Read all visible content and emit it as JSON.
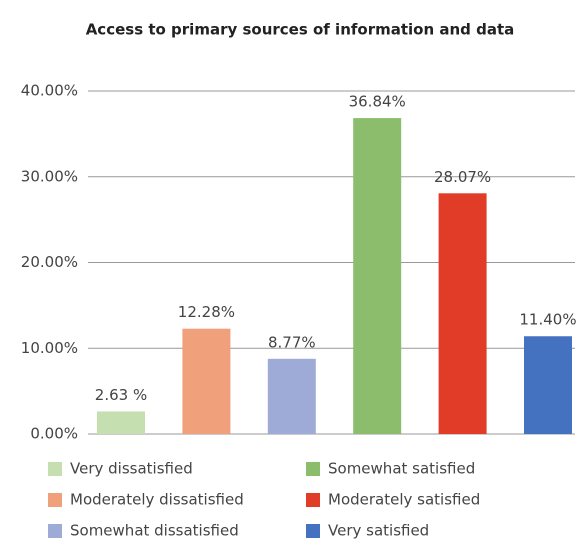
{
  "chart_data": {
    "type": "bar",
    "title": "Access to primary sources of information and data",
    "categories": [
      "Very dissatisfied",
      "Moderately dissatisfied",
      "Somewhat dissatisfied",
      "Somewhat satisfied",
      "Moderately satisfied",
      "Very satisfied"
    ],
    "values": [
      2.63,
      12.28,
      8.77,
      36.84,
      28.07,
      11.4
    ],
    "value_labels": [
      "2.63 %",
      "12.28%",
      "8.77%",
      "36.84%",
      "28.07%",
      "11.40%"
    ],
    "colors": [
      "#c5dfb0",
      "#f0a07a",
      "#9fabd7",
      "#8bbd6c",
      "#e03c28",
      "#4472c0"
    ],
    "ylim": [
      0,
      40
    ],
    "yticks": [
      {
        "value": 0,
        "label": "0.00%"
      },
      {
        "value": 10,
        "label": "10.00%"
      },
      {
        "value": 20,
        "label": "20.00%"
      },
      {
        "value": 30,
        "label": "30.00%"
      },
      {
        "value": 40,
        "label": "40.00%"
      }
    ],
    "grid": true,
    "legend": "bottom"
  }
}
